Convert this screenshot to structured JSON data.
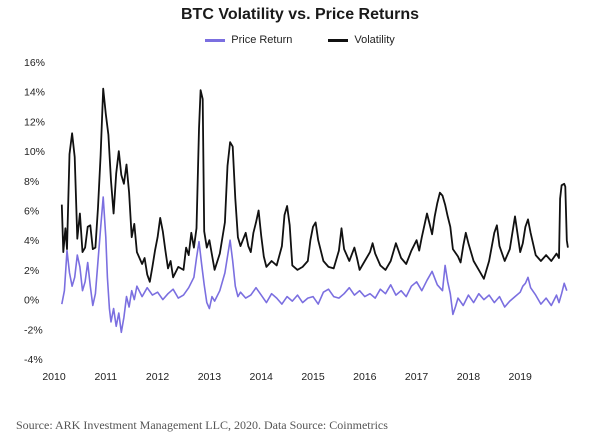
{
  "source_note": "Source: ARK Investment Management LLC, 2020. Data Source: Coinmetrics",
  "colors": {
    "price_return": "#7b6fe0",
    "volatility": "#111111",
    "axis_text": "#222222"
  },
  "chart_data": {
    "type": "line",
    "title": "BTC Volatility vs. Price Returns",
    "xlabel": "",
    "ylabel": "",
    "xlim": [
      2010.0,
      2020.0
    ],
    "ylim": [
      -4,
      16
    ],
    "y_unit": "%",
    "x_ticks": [
      2010,
      2011,
      2012,
      2013,
      2014,
      2015,
      2016,
      2017,
      2018,
      2019
    ],
    "x_tick_labels": [
      "2010",
      "2011",
      "2012",
      "2013",
      "2014",
      "2015",
      "2016",
      "2017",
      "2018",
      "2019"
    ],
    "y_ticks": [
      -4,
      -2,
      0,
      2,
      4,
      6,
      8,
      10,
      12,
      14,
      16
    ],
    "y_tick_labels": [
      "-4%",
      "-2%",
      "0%",
      "2%",
      "4%",
      "6%",
      "8%",
      "10%",
      "12%",
      "14%",
      "16%"
    ],
    "grid": false,
    "legend_position": "top-center",
    "series": [
      {
        "name": "Price Return",
        "points": [
          [
            2010.15,
            -0.3
          ],
          [
            2010.2,
            0.6
          ],
          [
            2010.25,
            3.3
          ],
          [
            2010.3,
            1.8
          ],
          [
            2010.35,
            0.9
          ],
          [
            2010.4,
            1.5
          ],
          [
            2010.45,
            3.0
          ],
          [
            2010.5,
            2.2
          ],
          [
            2010.55,
            0.6
          ],
          [
            2010.6,
            1.2
          ],
          [
            2010.65,
            2.5
          ],
          [
            2010.7,
            0.9
          ],
          [
            2010.75,
            -0.4
          ],
          [
            2010.8,
            0.4
          ],
          [
            2010.85,
            2.6
          ],
          [
            2010.9,
            4.8
          ],
          [
            2010.95,
            6.9
          ],
          [
            2011.0,
            4.2
          ],
          [
            2011.03,
            1.5
          ],
          [
            2011.07,
            -0.6
          ],
          [
            2011.1,
            -1.5
          ],
          [
            2011.15,
            -0.6
          ],
          [
            2011.2,
            -1.8
          ],
          [
            2011.25,
            -0.9
          ],
          [
            2011.3,
            -2.2
          ],
          [
            2011.35,
            -1.2
          ],
          [
            2011.4,
            0.2
          ],
          [
            2011.45,
            -0.5
          ],
          [
            2011.5,
            0.6
          ],
          [
            2011.55,
            0.0
          ],
          [
            2011.6,
            0.9
          ],
          [
            2011.7,
            0.2
          ],
          [
            2011.8,
            0.8
          ],
          [
            2011.9,
            0.3
          ],
          [
            2012.0,
            0.5
          ],
          [
            2012.1,
            0.0
          ],
          [
            2012.2,
            0.4
          ],
          [
            2012.3,
            0.7
          ],
          [
            2012.4,
            0.1
          ],
          [
            2012.5,
            0.3
          ],
          [
            2012.6,
            0.8
          ],
          [
            2012.7,
            1.5
          ],
          [
            2012.75,
            2.8
          ],
          [
            2012.8,
            3.9
          ],
          [
            2012.85,
            2.4
          ],
          [
            2012.9,
            1.0
          ],
          [
            2012.95,
            -0.2
          ],
          [
            2013.0,
            -0.6
          ],
          [
            2013.05,
            0.2
          ],
          [
            2013.1,
            -0.1
          ],
          [
            2013.2,
            0.6
          ],
          [
            2013.3,
            1.8
          ],
          [
            2013.35,
            2.9
          ],
          [
            2013.4,
            4.0
          ],
          [
            2013.45,
            2.6
          ],
          [
            2013.5,
            0.9
          ],
          [
            2013.55,
            0.2
          ],
          [
            2013.6,
            0.5
          ],
          [
            2013.7,
            0.1
          ],
          [
            2013.8,
            0.3
          ],
          [
            2013.9,
            0.8
          ],
          [
            2014.0,
            0.3
          ],
          [
            2014.1,
            -0.2
          ],
          [
            2014.2,
            0.4
          ],
          [
            2014.3,
            0.1
          ],
          [
            2014.4,
            -0.3
          ],
          [
            2014.5,
            0.2
          ],
          [
            2014.6,
            -0.1
          ],
          [
            2014.7,
            0.3
          ],
          [
            2014.8,
            -0.2
          ],
          [
            2014.9,
            0.1
          ],
          [
            2015.0,
            0.2
          ],
          [
            2015.1,
            -0.3
          ],
          [
            2015.2,
            0.5
          ],
          [
            2015.3,
            0.7
          ],
          [
            2015.4,
            0.2
          ],
          [
            2015.5,
            0.1
          ],
          [
            2015.6,
            0.4
          ],
          [
            2015.7,
            0.8
          ],
          [
            2015.8,
            0.3
          ],
          [
            2015.9,
            0.6
          ],
          [
            2016.0,
            0.2
          ],
          [
            2016.1,
            0.4
          ],
          [
            2016.2,
            0.1
          ],
          [
            2016.3,
            0.7
          ],
          [
            2016.4,
            0.4
          ],
          [
            2016.5,
            1.0
          ],
          [
            2016.6,
            0.3
          ],
          [
            2016.7,
            0.6
          ],
          [
            2016.8,
            0.2
          ],
          [
            2016.9,
            0.9
          ],
          [
            2017.0,
            1.2
          ],
          [
            2017.1,
            0.6
          ],
          [
            2017.2,
            1.3
          ],
          [
            2017.3,
            1.9
          ],
          [
            2017.4,
            1.0
          ],
          [
            2017.5,
            0.6
          ],
          [
            2017.55,
            2.3
          ],
          [
            2017.6,
            1.2
          ],
          [
            2017.65,
            0.4
          ],
          [
            2017.7,
            -1.0
          ],
          [
            2017.75,
            -0.5
          ],
          [
            2017.8,
            0.1
          ],
          [
            2017.9,
            -0.4
          ],
          [
            2018.0,
            0.3
          ],
          [
            2018.1,
            -0.2
          ],
          [
            2018.2,
            0.4
          ],
          [
            2018.3,
            0.0
          ],
          [
            2018.4,
            0.3
          ],
          [
            2018.5,
            -0.2
          ],
          [
            2018.6,
            0.2
          ],
          [
            2018.7,
            -0.5
          ],
          [
            2018.8,
            -0.1
          ],
          [
            2018.9,
            0.2
          ],
          [
            2019.0,
            0.5
          ],
          [
            2019.05,
            0.9
          ],
          [
            2019.1,
            1.1
          ],
          [
            2019.15,
            1.5
          ],
          [
            2019.2,
            0.8
          ],
          [
            2019.3,
            0.3
          ],
          [
            2019.4,
            -0.3
          ],
          [
            2019.5,
            0.1
          ],
          [
            2019.6,
            -0.4
          ],
          [
            2019.7,
            0.3
          ],
          [
            2019.75,
            -0.2
          ],
          [
            2019.8,
            0.4
          ],
          [
            2019.85,
            1.1
          ],
          [
            2019.9,
            0.6
          ]
        ]
      },
      {
        "name": "Volatility",
        "points": [
          [
            2010.15,
            6.4
          ],
          [
            2010.18,
            3.2
          ],
          [
            2010.22,
            4.8
          ],
          [
            2010.25,
            3.4
          ],
          [
            2010.3,
            9.8
          ],
          [
            2010.35,
            11.2
          ],
          [
            2010.4,
            9.6
          ],
          [
            2010.45,
            4.1
          ],
          [
            2010.5,
            5.8
          ],
          [
            2010.55,
            3.2
          ],
          [
            2010.6,
            3.5
          ],
          [
            2010.65,
            4.9
          ],
          [
            2010.7,
            5.0
          ],
          [
            2010.75,
            3.4
          ],
          [
            2010.8,
            3.5
          ],
          [
            2010.85,
            6.2
          ],
          [
            2010.9,
            9.7
          ],
          [
            2010.95,
            14.2
          ],
          [
            2011.0,
            12.5
          ],
          [
            2011.05,
            11.1
          ],
          [
            2011.1,
            8.0
          ],
          [
            2011.15,
            5.8
          ],
          [
            2011.2,
            8.5
          ],
          [
            2011.25,
            10.0
          ],
          [
            2011.3,
            8.4
          ],
          [
            2011.35,
            7.8
          ],
          [
            2011.4,
            9.1
          ],
          [
            2011.45,
            7.2
          ],
          [
            2011.5,
            4.2
          ],
          [
            2011.55,
            5.1
          ],
          [
            2011.6,
            3.2
          ],
          [
            2011.7,
            2.4
          ],
          [
            2011.75,
            2.8
          ],
          [
            2011.8,
            1.7
          ],
          [
            2011.85,
            1.2
          ],
          [
            2011.9,
            2.2
          ],
          [
            2011.95,
            3.3
          ],
          [
            2012.0,
            4.2
          ],
          [
            2012.05,
            5.5
          ],
          [
            2012.1,
            4.6
          ],
          [
            2012.15,
            3.3
          ],
          [
            2012.2,
            2.1
          ],
          [
            2012.25,
            2.6
          ],
          [
            2012.3,
            1.5
          ],
          [
            2012.4,
            2.2
          ],
          [
            2012.5,
            2.0
          ],
          [
            2012.55,
            3.5
          ],
          [
            2012.6,
            3.0
          ],
          [
            2012.65,
            4.5
          ],
          [
            2012.7,
            3.5
          ],
          [
            2012.75,
            4.8
          ],
          [
            2012.8,
            11.5
          ],
          [
            2012.83,
            14.1
          ],
          [
            2012.87,
            13.5
          ],
          [
            2012.9,
            4.6
          ],
          [
            2012.95,
            3.5
          ],
          [
            2013.0,
            4.0
          ],
          [
            2013.1,
            2.0
          ],
          [
            2013.2,
            3.1
          ],
          [
            2013.3,
            5.2
          ],
          [
            2013.35,
            9.0
          ],
          [
            2013.4,
            10.6
          ],
          [
            2013.45,
            10.3
          ],
          [
            2013.5,
            6.8
          ],
          [
            2013.55,
            4.2
          ],
          [
            2013.6,
            3.6
          ],
          [
            2013.7,
            4.5
          ],
          [
            2013.75,
            3.6
          ],
          [
            2013.8,
            3.2
          ],
          [
            2013.85,
            4.5
          ],
          [
            2013.9,
            5.2
          ],
          [
            2013.95,
            6.0
          ],
          [
            2014.0,
            4.3
          ],
          [
            2014.05,
            2.9
          ],
          [
            2014.1,
            2.2
          ],
          [
            2014.2,
            2.6
          ],
          [
            2014.3,
            2.3
          ],
          [
            2014.4,
            3.6
          ],
          [
            2014.45,
            5.7
          ],
          [
            2014.5,
            6.3
          ],
          [
            2014.55,
            5.0
          ],
          [
            2014.6,
            2.3
          ],
          [
            2014.7,
            2.0
          ],
          [
            2014.8,
            2.2
          ],
          [
            2014.9,
            2.6
          ],
          [
            2014.95,
            4.0
          ],
          [
            2015.0,
            4.9
          ],
          [
            2015.05,
            5.2
          ],
          [
            2015.1,
            4.0
          ],
          [
            2015.2,
            2.6
          ],
          [
            2015.3,
            2.2
          ],
          [
            2015.4,
            2.1
          ],
          [
            2015.5,
            3.3
          ],
          [
            2015.55,
            4.8
          ],
          [
            2015.6,
            3.4
          ],
          [
            2015.7,
            2.6
          ],
          [
            2015.8,
            3.5
          ],
          [
            2015.85,
            2.8
          ],
          [
            2015.9,
            2.0
          ],
          [
            2016.0,
            2.6
          ],
          [
            2016.1,
            3.2
          ],
          [
            2016.15,
            3.8
          ],
          [
            2016.2,
            3.1
          ],
          [
            2016.3,
            2.3
          ],
          [
            2016.4,
            2.0
          ],
          [
            2016.5,
            2.6
          ],
          [
            2016.6,
            3.8
          ],
          [
            2016.7,
            2.8
          ],
          [
            2016.8,
            2.4
          ],
          [
            2016.9,
            3.3
          ],
          [
            2017.0,
            4.0
          ],
          [
            2017.05,
            3.3
          ],
          [
            2017.1,
            4.2
          ],
          [
            2017.2,
            5.8
          ],
          [
            2017.25,
            5.1
          ],
          [
            2017.3,
            4.4
          ],
          [
            2017.35,
            5.6
          ],
          [
            2017.4,
            6.5
          ],
          [
            2017.45,
            7.2
          ],
          [
            2017.5,
            7.0
          ],
          [
            2017.55,
            6.4
          ],
          [
            2017.6,
            5.6
          ],
          [
            2017.65,
            4.9
          ],
          [
            2017.7,
            3.4
          ],
          [
            2017.8,
            2.9
          ],
          [
            2017.85,
            2.5
          ],
          [
            2017.9,
            3.6
          ],
          [
            2017.95,
            4.5
          ],
          [
            2018.0,
            3.8
          ],
          [
            2018.1,
            2.6
          ],
          [
            2018.2,
            2.0
          ],
          [
            2018.3,
            1.4
          ],
          [
            2018.4,
            2.6
          ],
          [
            2018.5,
            4.5
          ],
          [
            2018.55,
            5.0
          ],
          [
            2018.6,
            3.6
          ],
          [
            2018.7,
            2.6
          ],
          [
            2018.8,
            3.4
          ],
          [
            2018.9,
            5.6
          ],
          [
            2018.95,
            4.4
          ],
          [
            2019.0,
            3.2
          ],
          [
            2019.05,
            3.8
          ],
          [
            2019.1,
            4.9
          ],
          [
            2019.15,
            5.4
          ],
          [
            2019.2,
            4.5
          ],
          [
            2019.3,
            3.0
          ],
          [
            2019.4,
            2.6
          ],
          [
            2019.5,
            3.0
          ],
          [
            2019.6,
            2.6
          ],
          [
            2019.7,
            3.1
          ],
          [
            2019.75,
            2.8
          ],
          [
            2019.77,
            6.8
          ],
          [
            2019.8,
            7.7
          ],
          [
            2019.85,
            7.8
          ],
          [
            2019.87,
            7.6
          ],
          [
            2019.9,
            4.0
          ],
          [
            2019.92,
            3.5
          ]
        ]
      }
    ]
  }
}
